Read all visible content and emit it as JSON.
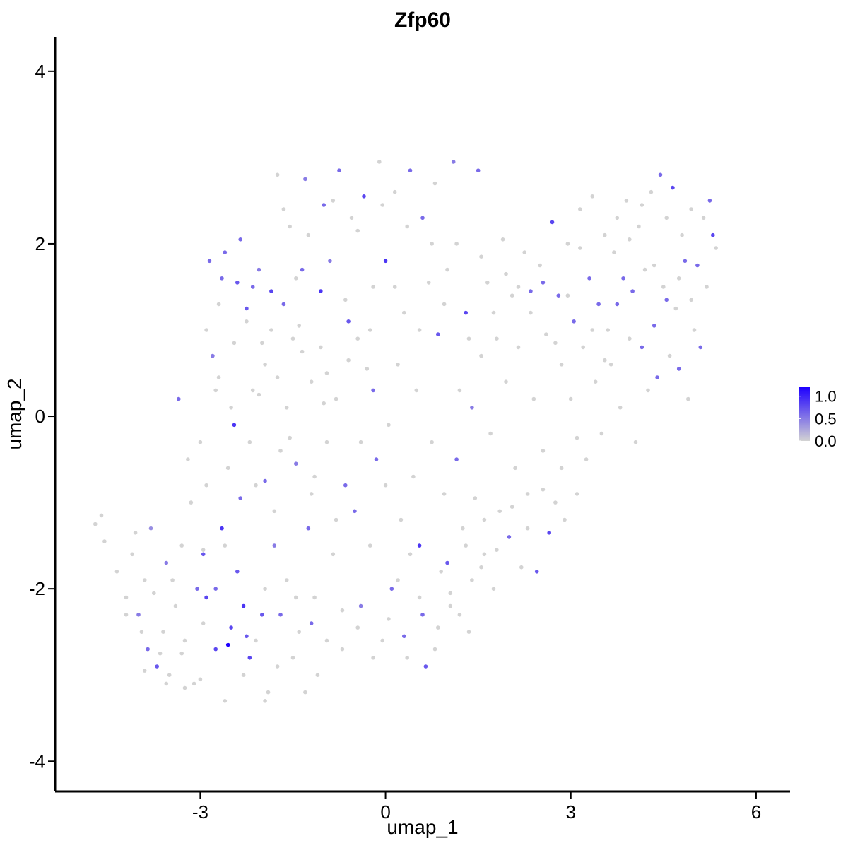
{
  "chart_data": {
    "type": "scatter",
    "title": "Zfp60",
    "xlabel": "umap_1",
    "ylabel": "umap_2",
    "xlim": [
      -5.35,
      6.55
    ],
    "ylim": [
      -4.35,
      4.4
    ],
    "x_ticks": [
      -3,
      0,
      3,
      6
    ],
    "x_tick_labels": [
      "-3",
      "0",
      "3",
      "6"
    ],
    "y_ticks": [
      -4,
      -2,
      0,
      2,
      4
    ],
    "y_tick_labels": [
      "-4",
      "-2",
      "0",
      "2",
      "4"
    ],
    "grid": false,
    "legend": {
      "placement": "right",
      "kind": "colorbar",
      "ticks": [
        0.0,
        0.5,
        1.0
      ],
      "tick_labels": [
        "0.0",
        "0.5",
        "1.0"
      ],
      "range": [
        0,
        1.2
      ],
      "low_color": "#d3d3d3",
      "high_color": "#1e00ff"
    },
    "colors": {
      "low": "#d3d3d3",
      "high": "#1e00ff"
    },
    "points": [
      [
        -4.7,
        -1.25,
        0
      ],
      [
        -4.6,
        -1.15,
        0
      ],
      [
        -4.55,
        -1.45,
        0
      ],
      [
        -4.35,
        -1.8,
        0
      ],
      [
        -4.2,
        -2.1,
        0
      ],
      [
        -4.1,
        -1.6,
        0
      ],
      [
        -4.0,
        -2.3,
        0.5
      ],
      [
        -3.9,
        -1.9,
        0
      ],
      [
        -3.85,
        -2.7,
        0.6
      ],
      [
        -3.8,
        -1.3,
        0.4
      ],
      [
        -3.7,
        -2.9,
        0.7
      ],
      [
        -3.6,
        -2.5,
        0
      ],
      [
        -3.55,
        -1.7,
        0.5
      ],
      [
        -3.5,
        -3.0,
        0
      ],
      [
        -3.4,
        -2.2,
        0
      ],
      [
        -3.3,
        -1.5,
        0
      ],
      [
        -3.25,
        -2.6,
        0
      ],
      [
        -3.2,
        -0.5,
        0
      ],
      [
        -3.1,
        -3.1,
        0
      ],
      [
        -3.05,
        -2.0,
        0.6
      ],
      [
        -3.0,
        -0.3,
        0
      ],
      [
        -2.95,
        -1.6,
        0.7
      ],
      [
        -2.9,
        -2.1,
        0.8
      ],
      [
        -2.85,
        1.8,
        0.6
      ],
      [
        -2.8,
        0.7,
        0.5
      ],
      [
        -2.75,
        -2.7,
        0.8
      ],
      [
        -2.7,
        1.3,
        0
      ],
      [
        -2.65,
        -1.3,
        0.9
      ],
      [
        -2.6,
        1.9,
        0.6
      ],
      [
        -2.55,
        -2.65,
        1.2
      ],
      [
        -2.5,
        0.1,
        0
      ],
      [
        -2.45,
        -0.1,
        0.9
      ],
      [
        -2.4,
        -1.8,
        0.7
      ],
      [
        -2.35,
        2.05,
        0.6
      ],
      [
        -2.3,
        -2.2,
        0.9
      ],
      [
        -2.25,
        1.1,
        0
      ],
      [
        -2.2,
        -2.8,
        0.8
      ],
      [
        -2.15,
        1.5,
        0.6
      ],
      [
        -2.1,
        -0.8,
        0
      ],
      [
        -2.05,
        1.7,
        0.5
      ],
      [
        -2.0,
        -2.3,
        0.7
      ],
      [
        -1.95,
        0.6,
        0
      ],
      [
        -1.9,
        -3.2,
        0
      ],
      [
        -1.85,
        1.45,
        0.8
      ],
      [
        -1.8,
        -1.5,
        0.5
      ],
      [
        -1.75,
        2.8,
        0
      ],
      [
        -1.7,
        -0.4,
        0
      ],
      [
        -1.65,
        1.3,
        0.6
      ],
      [
        -1.6,
        -1.9,
        0
      ],
      [
        -1.55,
        2.2,
        0
      ],
      [
        -1.5,
        0.9,
        0
      ],
      [
        -1.45,
        -0.55,
        0.5
      ],
      [
        -1.4,
        -2.5,
        0
      ],
      [
        -1.35,
        1.7,
        0.6
      ],
      [
        -1.3,
        2.75,
        0.5
      ],
      [
        -1.25,
        -1.3,
        0.6
      ],
      [
        -1.2,
        0.4,
        0
      ],
      [
        -1.15,
        -2.1,
        0
      ],
      [
        -1.1,
        -3.0,
        0
      ],
      [
        -1.05,
        1.45,
        0.9
      ],
      [
        -1.0,
        2.45,
        0.6
      ],
      [
        -0.95,
        -0.3,
        0
      ],
      [
        -0.9,
        1.8,
        0.5
      ],
      [
        -0.85,
        -1.6,
        0
      ],
      [
        -0.8,
        0.2,
        0
      ],
      [
        -0.75,
        2.85,
        0.6
      ],
      [
        -0.7,
        -2.7,
        0
      ],
      [
        -0.65,
        -0.8,
        0.6
      ],
      [
        -0.6,
        1.1,
        0.7
      ],
      [
        -0.55,
        2.3,
        0
      ],
      [
        -0.5,
        -1.1,
        0.6
      ],
      [
        -0.45,
        0.9,
        0
      ],
      [
        -0.4,
        -2.2,
        0.5
      ],
      [
        -0.35,
        2.55,
        0.8
      ],
      [
        -0.3,
        0.55,
        0
      ],
      [
        -0.25,
        -1.5,
        0
      ],
      [
        -0.2,
        1.5,
        0
      ],
      [
        -0.15,
        -0.5,
        0.6
      ],
      [
        -0.1,
        2.95,
        0
      ],
      [
        -0.05,
        -2.6,
        0
      ],
      [
        0.0,
        1.8,
        0.9
      ],
      [
        0.05,
        -0.1,
        0
      ],
      [
        0.1,
        -2.0,
        0.6
      ],
      [
        0.15,
        2.6,
        0
      ],
      [
        0.2,
        0.6,
        0
      ],
      [
        0.25,
        -1.2,
        0
      ],
      [
        0.3,
        1.2,
        0
      ],
      [
        0.35,
        -2.8,
        0
      ],
      [
        0.4,
        2.85,
        0.6
      ],
      [
        0.45,
        -0.7,
        0
      ],
      [
        0.5,
        0.3,
        0
      ],
      [
        0.55,
        -1.5,
        0.9
      ],
      [
        0.6,
        2.3,
        0.6
      ],
      [
        0.65,
        -2.9,
        0.7
      ],
      [
        0.7,
        1.55,
        0
      ],
      [
        0.75,
        -0.3,
        0
      ],
      [
        0.8,
        2.7,
        0
      ],
      [
        0.85,
        0.95,
        0.7
      ],
      [
        0.9,
        -1.8,
        0
      ],
      [
        0.95,
        -0.9,
        0
      ],
      [
        1.0,
        1.7,
        0
      ],
      [
        1.05,
        -2.2,
        0
      ],
      [
        1.1,
        2.95,
        0.5
      ],
      [
        1.15,
        -0.5,
        0.6
      ],
      [
        1.2,
        0.3,
        0
      ],
      [
        1.25,
        -1.3,
        0
      ],
      [
        1.3,
        1.2,
        0.8
      ],
      [
        1.35,
        -2.5,
        0
      ],
      [
        1.4,
        0.1,
        0.5
      ],
      [
        1.45,
        -0.95,
        0
      ],
      [
        1.5,
        2.85,
        0.6
      ],
      [
        1.55,
        0.7,
        0
      ],
      [
        1.6,
        -1.6,
        0
      ],
      [
        1.65,
        1.55,
        0
      ],
      [
        1.7,
        -0.2,
        0
      ],
      [
        1.75,
        -2.0,
        0
      ],
      [
        1.8,
        0.9,
        0
      ],
      [
        1.85,
        -1.1,
        0
      ],
      [
        1.9,
        2.05,
        0
      ],
      [
        1.95,
        0.4,
        0
      ],
      [
        2.0,
        -1.4,
        0.6
      ],
      [
        2.05,
        1.4,
        0
      ],
      [
        2.1,
        -0.6,
        0
      ],
      [
        2.15,
        0.8,
        0
      ],
      [
        2.2,
        -1.75,
        0
      ],
      [
        2.25,
        1.9,
        0
      ],
      [
        2.3,
        -0.9,
        0
      ],
      [
        2.35,
        1.45,
        0.6
      ],
      [
        2.4,
        0.2,
        0
      ],
      [
        2.45,
        -1.8,
        0.7
      ],
      [
        2.5,
        1.75,
        0
      ],
      [
        2.55,
        -0.4,
        0
      ],
      [
        2.6,
        0.95,
        0
      ],
      [
        2.65,
        -1.35,
        0.8
      ],
      [
        2.7,
        2.25,
        0.8
      ],
      [
        2.75,
        -1.0,
        0
      ],
      [
        2.8,
        1.4,
        0.6
      ],
      [
        2.85,
        0.6,
        0
      ],
      [
        2.9,
        -1.2,
        0
      ],
      [
        2.95,
        2.0,
        0
      ],
      [
        3.0,
        0.2,
        0
      ],
      [
        3.05,
        1.1,
        0.6
      ],
      [
        3.1,
        -0.9,
        0
      ],
      [
        3.15,
        2.4,
        0
      ],
      [
        3.2,
        0.8,
        0
      ],
      [
        3.25,
        -0.5,
        0
      ],
      [
        3.3,
        1.6,
        0.6
      ],
      [
        3.35,
        2.55,
        0
      ],
      [
        3.4,
        0.4,
        0
      ],
      [
        3.45,
        1.3,
        0.6
      ],
      [
        3.5,
        -0.2,
        0
      ],
      [
        3.55,
        2.1,
        0
      ],
      [
        3.6,
        1.0,
        0
      ],
      [
        3.65,
        0.6,
        0
      ],
      [
        3.7,
        1.9,
        0
      ],
      [
        3.75,
        2.3,
        0
      ],
      [
        3.8,
        0.1,
        0
      ],
      [
        3.85,
        1.6,
        0.6
      ],
      [
        3.9,
        2.5,
        0
      ],
      [
        3.95,
        0.9,
        0
      ],
      [
        4.0,
        1.45,
        0.6
      ],
      [
        4.05,
        -0.3,
        0
      ],
      [
        4.1,
        2.2,
        0
      ],
      [
        4.15,
        0.8,
        0.6
      ],
      [
        4.2,
        1.7,
        0
      ],
      [
        4.25,
        0.3,
        0
      ],
      [
        4.3,
        2.6,
        0
      ],
      [
        4.35,
        1.05,
        0.6
      ],
      [
        4.4,
        0.45,
        0.6
      ],
      [
        4.45,
        2.8,
        0.6
      ],
      [
        4.5,
        1.5,
        0
      ],
      [
        4.55,
        2.3,
        0
      ],
      [
        4.6,
        0.7,
        0
      ],
      [
        4.65,
        2.65,
        0.8
      ],
      [
        4.7,
        1.25,
        0
      ],
      [
        4.75,
        0.55,
        0.6
      ],
      [
        4.8,
        2.1,
        0
      ],
      [
        4.85,
        1.8,
        0.6
      ],
      [
        4.9,
        0.2,
        0
      ],
      [
        4.95,
        2.4,
        0
      ],
      [
        5.0,
        1.0,
        0
      ],
      [
        5.05,
        1.75,
        0.6
      ],
      [
        5.1,
        0.8,
        0.6
      ],
      [
        5.15,
        2.3,
        0
      ],
      [
        5.2,
        1.5,
        0
      ],
      [
        5.25,
        2.5,
        0.6
      ],
      [
        5.3,
        2.1,
        0.8
      ],
      [
        5.35,
        1.95,
        0
      ],
      [
        -3.95,
        -2.5,
        0
      ],
      [
        -3.75,
        -2.05,
        0
      ],
      [
        -3.45,
        -1.9,
        0
      ],
      [
        -3.35,
        0.2,
        0.6
      ],
      [
        -3.15,
        -1.0,
        0
      ],
      [
        -3.0,
        -3.05,
        0
      ],
      [
        -2.9,
        -0.8,
        0
      ],
      [
        -2.7,
        0.45,
        0
      ],
      [
        -2.6,
        -1.5,
        0
      ],
      [
        -2.4,
        1.55,
        0.7
      ],
      [
        -2.2,
        -0.3,
        0
      ],
      [
        -2.0,
        0.85,
        0
      ],
      [
        -1.8,
        -1.1,
        0
      ],
      [
        -1.6,
        0.1,
        0
      ],
      [
        -1.4,
        1.05,
        0
      ],
      [
        -1.2,
        -0.9,
        0
      ],
      [
        -1.0,
        0.15,
        0
      ],
      [
        -0.8,
        -1.2,
        0
      ],
      [
        -0.6,
        0.65,
        0
      ],
      [
        -0.4,
        -0.3,
        0
      ],
      [
        -0.2,
        0.3,
        0.6
      ],
      [
        0.0,
        -0.8,
        0
      ],
      [
        0.2,
        -1.9,
        0
      ],
      [
        0.4,
        -1.6,
        0
      ],
      [
        0.6,
        -2.3,
        0.6
      ],
      [
        0.8,
        -2.7,
        0
      ],
      [
        1.0,
        -1.7,
        0.7
      ],
      [
        1.2,
        -2.3,
        0
      ],
      [
        1.4,
        -1.9,
        0
      ],
      [
        1.6,
        -1.2,
        0
      ],
      [
        -3.65,
        -2.75,
        0
      ],
      [
        -3.3,
        -2.75,
        0
      ],
      [
        -2.95,
        -2.4,
        0
      ],
      [
        -2.6,
        -3.3,
        0
      ],
      [
        -2.3,
        -3.0,
        0
      ],
      [
        -2.1,
        -2.6,
        0
      ],
      [
        -1.95,
        -3.3,
        0
      ],
      [
        -1.75,
        -2.9,
        0
      ],
      [
        -1.5,
        -2.8,
        0
      ],
      [
        -1.3,
        -3.2,
        0
      ],
      [
        -2.75,
        0.3,
        0
      ],
      [
        -2.55,
        -0.6,
        0
      ],
      [
        -2.35,
        -0.95,
        0.6
      ],
      [
        -2.15,
        0.3,
        0
      ],
      [
        -1.95,
        -0.75,
        0.6
      ],
      [
        -1.75,
        0.45,
        0
      ],
      [
        -1.55,
        -0.25,
        0
      ],
      [
        -1.35,
        0.75,
        0
      ],
      [
        -1.15,
        -0.7,
        0
      ],
      [
        -0.95,
        0.5,
        0
      ],
      [
        -2.9,
        1.0,
        0
      ],
      [
        -2.65,
        1.6,
        0.6
      ],
      [
        -2.45,
        0.85,
        0
      ],
      [
        -2.25,
        1.25,
        0.7
      ],
      [
        -2.05,
        0.25,
        0
      ],
      [
        -1.85,
        1.0,
        0
      ],
      [
        -1.65,
        2.4,
        0
      ],
      [
        -1.45,
        1.6,
        0
      ],
      [
        -1.25,
        2.1,
        0
      ],
      [
        -1.05,
        0.8,
        0
      ],
      [
        -0.85,
        2.5,
        0
      ],
      [
        -0.65,
        1.35,
        0
      ],
      [
        -0.45,
        2.15,
        0
      ],
      [
        -0.25,
        1.0,
        0
      ],
      [
        -0.05,
        2.45,
        0
      ],
      [
        0.15,
        1.5,
        0
      ],
      [
        0.35,
        2.2,
        0
      ],
      [
        0.55,
        1.0,
        0
      ],
      [
        0.75,
        2.0,
        0
      ],
      [
        0.95,
        1.3,
        0
      ],
      [
        1.15,
        2.0,
        0
      ],
      [
        1.35,
        0.9,
        0
      ],
      [
        1.55,
        1.85,
        0
      ],
      [
        1.75,
        1.2,
        0
      ],
      [
        1.95,
        1.65,
        0
      ],
      [
        2.15,
        1.5,
        0
      ],
      [
        2.35,
        1.2,
        0
      ],
      [
        2.55,
        1.55,
        0.6
      ],
      [
        2.75,
        0.85,
        0
      ],
      [
        2.95,
        1.4,
        0
      ],
      [
        3.15,
        1.95,
        0
      ],
      [
        3.35,
        1.0,
        0
      ],
      [
        3.55,
        0.65,
        0
      ],
      [
        3.75,
        1.3,
        0.6
      ],
      [
        3.95,
        2.05,
        0
      ],
      [
        4.15,
        2.45,
        0
      ],
      [
        4.35,
        1.75,
        0
      ],
      [
        4.55,
        1.35,
        0.6
      ],
      [
        4.75,
        1.6,
        0
      ],
      [
        4.95,
        1.35,
        0
      ],
      [
        -4.2,
        -2.3,
        0
      ],
      [
        -4.05,
        -1.35,
        0
      ],
      [
        -3.9,
        -2.95,
        0
      ],
      [
        -3.55,
        -3.1,
        0
      ],
      [
        -3.25,
        -3.15,
        0
      ],
      [
        -2.95,
        -1.55,
        0
      ],
      [
        -2.75,
        -2.0,
        0.6
      ],
      [
        -2.5,
        -2.45,
        0.8
      ],
      [
        -2.25,
        -2.55,
        0.7
      ],
      [
        -1.95,
        -2.0,
        0
      ],
      [
        -1.7,
        -2.3,
        0.6
      ],
      [
        -1.45,
        -2.1,
        0
      ],
      [
        -1.2,
        -2.4,
        0.6
      ],
      [
        -0.95,
        -2.6,
        0
      ],
      [
        -0.7,
        -2.25,
        0
      ],
      [
        -0.45,
        -2.45,
        0
      ],
      [
        -0.2,
        -2.8,
        0
      ],
      [
        0.05,
        -2.35,
        0
      ],
      [
        0.3,
        -2.55,
        0.6
      ],
      [
        0.55,
        -2.1,
        0
      ],
      [
        0.85,
        -2.45,
        0
      ],
      [
        1.05,
        -2.05,
        0
      ],
      [
        1.3,
        -1.5,
        0
      ],
      [
        1.55,
        -1.75,
        0
      ],
      [
        1.8,
        -1.55,
        0
      ],
      [
        2.05,
        -1.05,
        0
      ],
      [
        2.3,
        -1.3,
        0
      ],
      [
        2.55,
        -0.85,
        0
      ],
      [
        2.85,
        -0.6,
        0
      ],
      [
        3.1,
        -0.25,
        0
      ]
    ]
  }
}
